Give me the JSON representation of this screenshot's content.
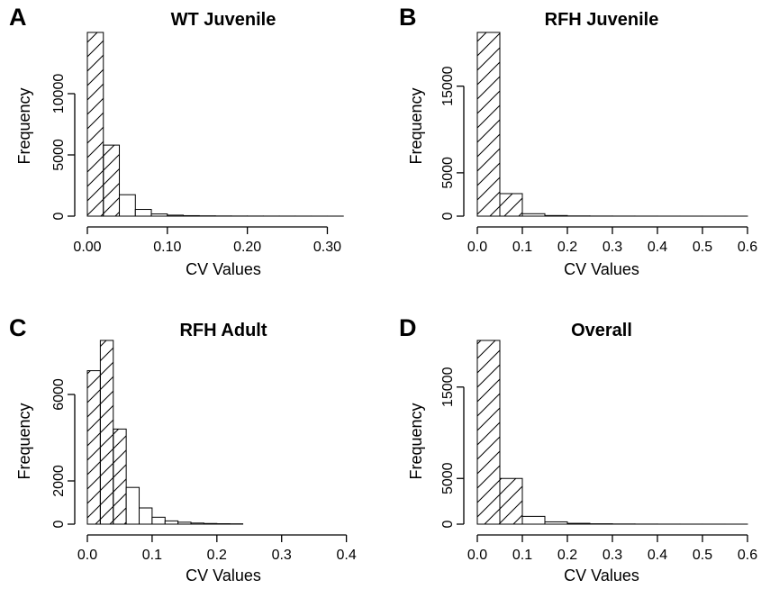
{
  "chart_data": [
    {
      "panel": "A",
      "type": "bar",
      "title": "WT Juvenile",
      "xlabel": "CV Values",
      "ylabel": "Frequency",
      "bin_width": 0.02,
      "x_start": 0.0,
      "values": [
        15000,
        5800,
        1750,
        550,
        180,
        80,
        40,
        25,
        15,
        10,
        8,
        6,
        5,
        4,
        3,
        2
      ],
      "xlim": [
        0,
        0.34
      ],
      "ylim": [
        0,
        15000
      ],
      "x_ticks": [
        0.0,
        0.1,
        0.2,
        0.3
      ],
      "x_tick_labels": [
        "0.00",
        "0.10",
        "0.20",
        "0.30"
      ],
      "y_ticks": [
        0,
        5000,
        10000
      ],
      "y_tick_labels": [
        "0",
        "5000",
        "10000"
      ],
      "hatch_first_n": 2
    },
    {
      "panel": "B",
      "type": "bar",
      "title": "RFH Juvenile",
      "xlabel": "CV Values",
      "ylabel": "Frequency",
      "bin_width": 0.05,
      "x_start": 0.0,
      "values": [
        21200,
        2600,
        280,
        70,
        25,
        12,
        8,
        5,
        3,
        2,
        1,
        1
      ],
      "xlim": [
        0,
        0.6
      ],
      "ylim": [
        0,
        21200
      ],
      "x_ticks": [
        0.0,
        0.1,
        0.2,
        0.3,
        0.4,
        0.5,
        0.6
      ],
      "x_tick_labels": [
        "0.0",
        "0.1",
        "0.2",
        "0.3",
        "0.4",
        "0.5",
        "0.6"
      ],
      "y_ticks": [
        0,
        5000,
        15000
      ],
      "y_tick_labels": [
        "0",
        "5000",
        "15000"
      ],
      "hatch_first_n": 2
    },
    {
      "panel": "C",
      "type": "bar",
      "title": "RFH Adult",
      "xlabel": "CV Values",
      "ylabel": "Frequency",
      "bin_width": 0.02,
      "x_start": 0.0,
      "values": [
        7100,
        8500,
        4400,
        1700,
        750,
        320,
        150,
        90,
        50,
        30,
        20,
        15
      ],
      "xlim": [
        0,
        0.42
      ],
      "ylim": [
        0,
        8500
      ],
      "x_ticks": [
        0.0,
        0.1,
        0.2,
        0.3,
        0.4
      ],
      "x_tick_labels": [
        "0.0",
        "0.1",
        "0.2",
        "0.3",
        "0.4"
      ],
      "y_ticks": [
        0,
        2000,
        6000
      ],
      "y_tick_labels": [
        "0",
        "2000",
        "6000"
      ],
      "hatch_first_n": 3
    },
    {
      "panel": "D",
      "type": "bar",
      "title": "Overall",
      "xlabel": "CV Values",
      "ylabel": "Frequency",
      "bin_width": 0.05,
      "x_start": 0.0,
      "values": [
        20100,
        5000,
        850,
        250,
        90,
        40,
        20,
        10,
        5,
        3,
        2,
        1
      ],
      "xlim": [
        0,
        0.6
      ],
      "ylim": [
        0,
        20100
      ],
      "x_ticks": [
        0.0,
        0.1,
        0.2,
        0.3,
        0.4,
        0.5,
        0.6
      ],
      "x_tick_labels": [
        "0.0",
        "0.1",
        "0.2",
        "0.3",
        "0.4",
        "0.5",
        "0.6"
      ],
      "y_ticks": [
        0,
        5000,
        15000
      ],
      "y_tick_labels": [
        "0",
        "5000",
        "15000"
      ],
      "hatch_first_n": 2
    }
  ]
}
